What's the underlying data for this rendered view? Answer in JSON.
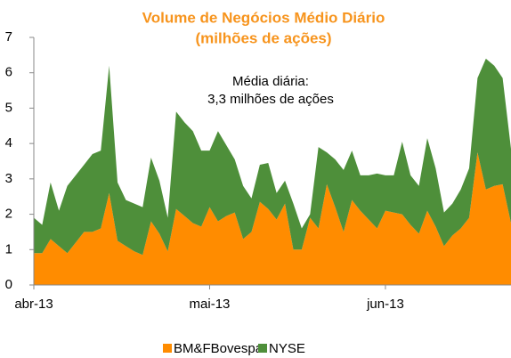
{
  "chart_data": {
    "type": "stacked-area",
    "title": [
      "Volume de Negócios Médio Diário",
      "(milhões de ações)"
    ],
    "annotation": [
      "Média diária:",
      "3,3 milhões de ações"
    ],
    "categories": [
      "abr-13",
      null,
      null,
      null,
      null,
      null,
      null,
      null,
      null,
      null,
      null,
      null,
      null,
      null,
      null,
      null,
      null,
      null,
      null,
      null,
      null,
      "mai-13",
      null,
      null,
      null,
      null,
      null,
      null,
      null,
      null,
      null,
      null,
      null,
      null,
      null,
      null,
      null,
      null,
      null,
      null,
      null,
      null,
      "jun-13",
      null,
      null,
      null,
      null,
      null,
      null,
      null,
      null,
      null,
      null,
      null,
      null,
      null,
      null,
      null
    ],
    "series": [
      {
        "name": "BM&FBovespa",
        "color": "#ff8c00",
        "values": [
          0.9,
          0.9,
          1.3,
          1.1,
          0.9,
          1.2,
          1.5,
          1.5,
          1.6,
          2.6,
          1.25,
          1.1,
          0.95,
          0.85,
          1.8,
          1.45,
          0.95,
          2.15,
          1.95,
          1.75,
          1.65,
          2.2,
          1.8,
          1.95,
          2.05,
          1.3,
          1.5,
          2.35,
          2.15,
          1.85,
          2.3,
          1.0,
          1.0,
          1.9,
          1.6,
          2.85,
          2.2,
          1.5,
          2.4,
          2.1,
          1.85,
          1.6,
          2.1,
          2.05,
          2.0,
          1.7,
          1.45,
          2.1,
          1.65,
          1.1,
          1.4,
          1.6,
          1.9,
          3.75,
          2.7,
          2.8,
          2.85,
          1.75
        ]
      },
      {
        "name": "NYSE",
        "color": "#4e8f3a",
        "values": [
          1.0,
          0.8,
          1.6,
          1.0,
          1.9,
          1.9,
          1.9,
          2.2,
          2.2,
          3.6,
          1.65,
          1.3,
          1.35,
          1.35,
          1.8,
          1.5,
          0.95,
          2.75,
          2.65,
          2.6,
          2.15,
          1.6,
          2.55,
          2.0,
          1.5,
          1.5,
          0.95,
          1.05,
          1.3,
          0.75,
          0.65,
          1.3,
          0.6,
          0.1,
          2.3,
          0.9,
          1.35,
          1.75,
          1.4,
          1.0,
          1.25,
          1.55,
          1.0,
          1.05,
          2.05,
          1.4,
          1.35,
          2.05,
          1.65,
          0.95,
          0.9,
          1.1,
          1.4,
          2.1,
          3.7,
          3.4,
          3.0,
          2.1
        ]
      }
    ],
    "ylim": [
      0,
      7
    ],
    "yticks": [
      0,
      1,
      2,
      3,
      4,
      5,
      6,
      7
    ],
    "legend": "bottom"
  }
}
